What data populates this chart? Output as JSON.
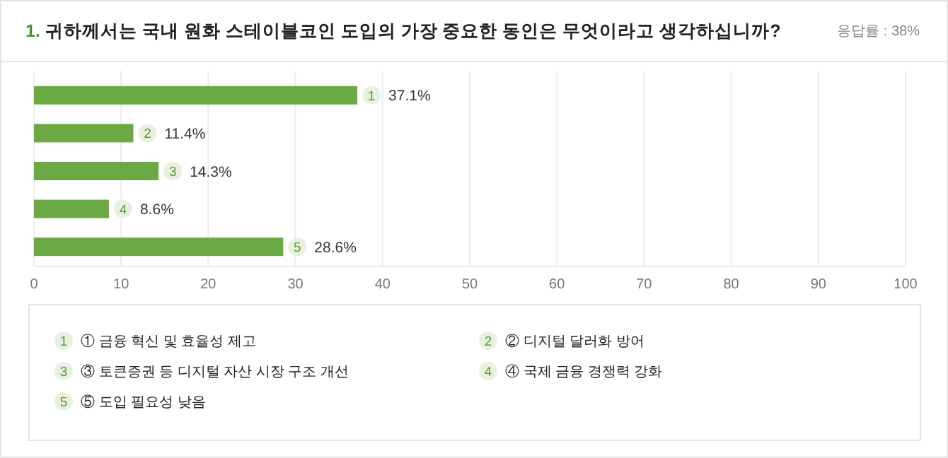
{
  "chart_data": {
    "type": "bar",
    "orientation": "horizontal",
    "title": "1. 귀하께서는 국내 원화 스테이블코인 도입의 가장 중요한 동인은 무엇이라고 생각하십니까?",
    "subtitle": "응답률 : 38%",
    "categories": [
      null,
      null,
      null,
      null,
      null
    ],
    "values": [
      37.1,
      11.4,
      14.3,
      8.6,
      28.6
    ],
    "value_labels": [
      "37.1%",
      "11.4%",
      "14.3%",
      "8.6%",
      "28.6%"
    ],
    "color": "#6aa944",
    "xlim": [
      0,
      100
    ],
    "xticks": [
      0,
      10,
      20,
      30,
      40,
      50,
      60,
      70,
      80,
      90,
      100
    ],
    "grid": "x",
    "annotations": [
      {
        "text": "1",
        "x": 37.1
      },
      {
        "text": "2",
        "x": 11.4
      },
      {
        "text": "3",
        "x": 14.3
      },
      {
        "text": "4",
        "x": 8.6
      },
      {
        "text": "5",
        "x": 28.6
      },
      "① 금융 혁신 및 효율성 제고",
      "② 디지털 달러화 방어",
      "③ 토큰증권 등 디지털 자산 시장 구조 개선",
      "④ 국제 금융 경쟁력 강화",
      "⑤ 도입 필요성 낮음"
    ]
  }
}
